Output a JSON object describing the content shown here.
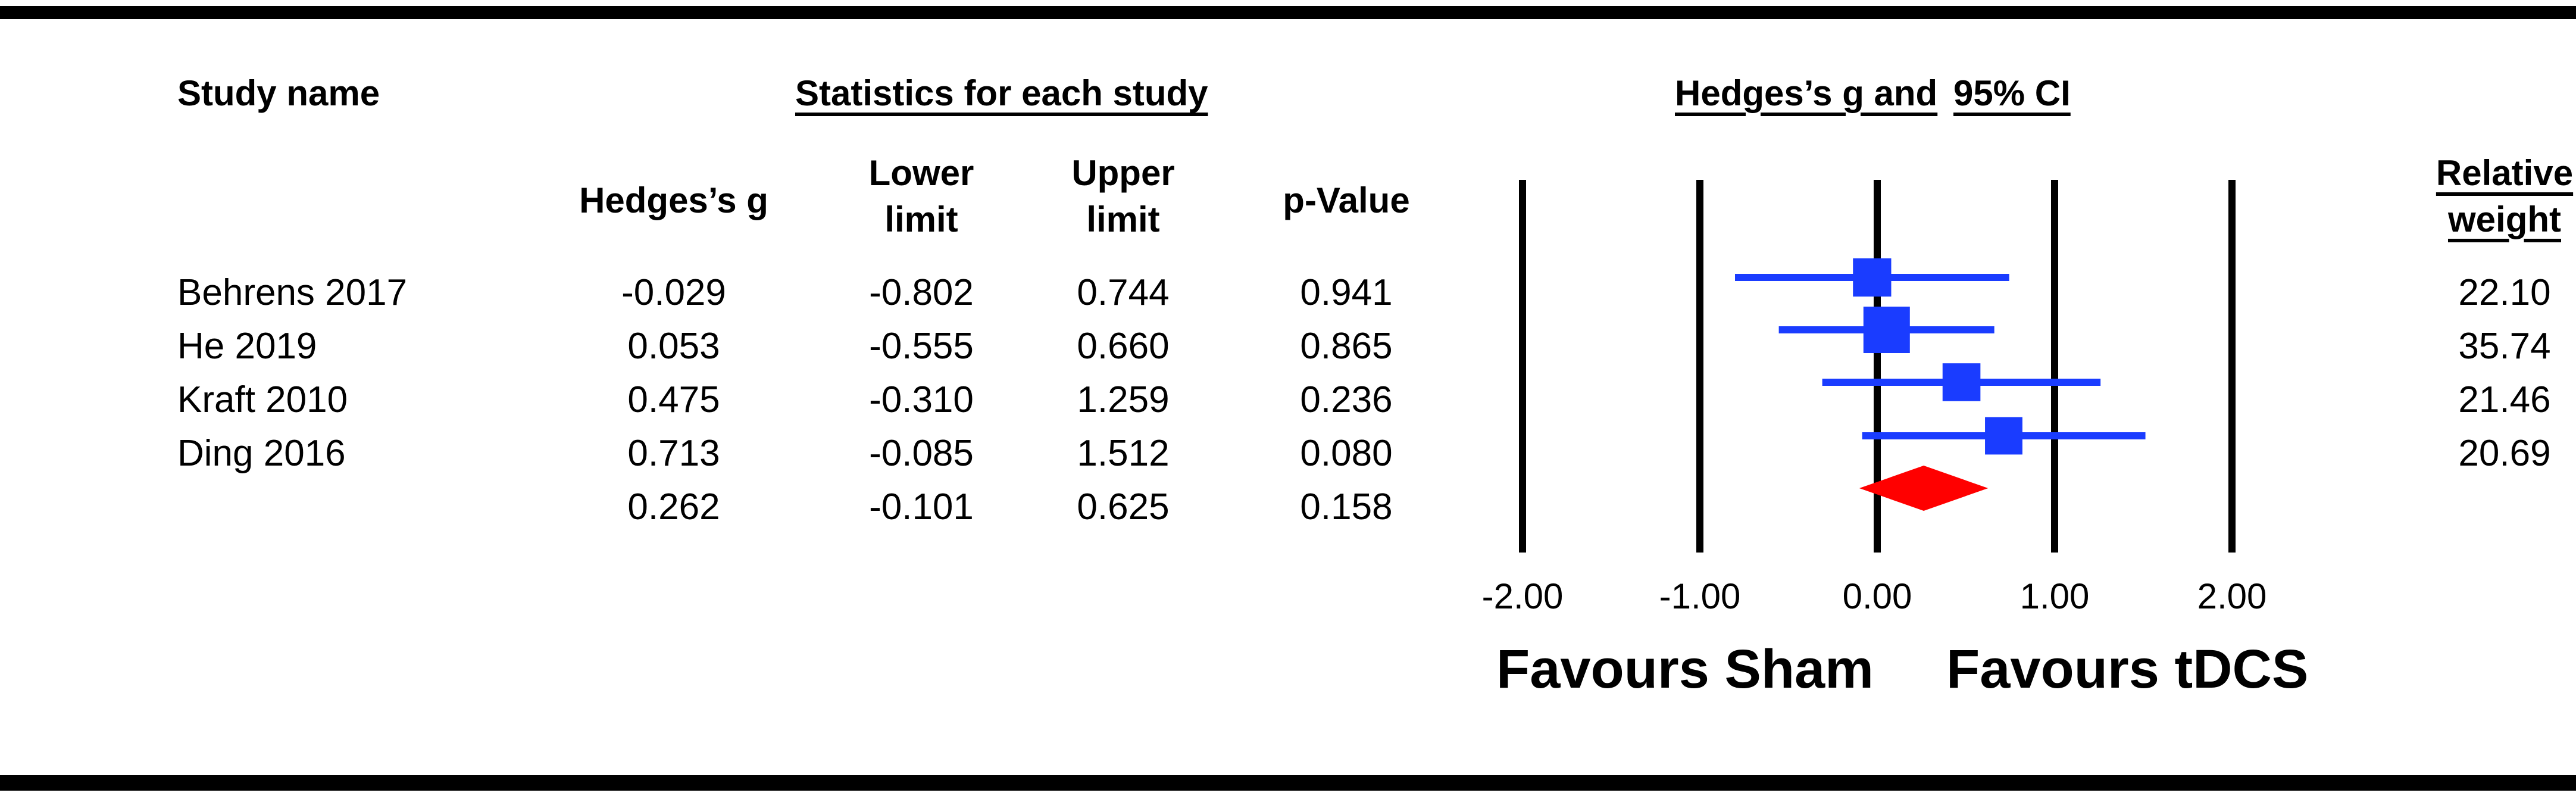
{
  "headers": {
    "study_name": "Study name",
    "stats_group": "Statistics for each study",
    "hedges_g": "Hedges’s g",
    "lower_limit": [
      "Lower",
      "limit"
    ],
    "upper_limit": [
      "Upper",
      "limit"
    ],
    "p_value": "p-Value",
    "plot_title_part1": "Hedges’s g and",
    "plot_title_part2": "95% CI",
    "relative_weight": [
      "Relative",
      "weight"
    ]
  },
  "rows": [
    {
      "study": "Behrens 2017",
      "g": "-0.029",
      "lower": "-0.802",
      "upper": "0.744",
      "p": "0.941",
      "weight": "22.10"
    },
    {
      "study": "He 2019",
      "g": "0.053",
      "lower": "-0.555",
      "upper": "0.660",
      "p": "0.865",
      "weight": "35.74"
    },
    {
      "study": "Kraft 2010",
      "g": "0.475",
      "lower": "-0.310",
      "upper": "1.259",
      "p": "0.236",
      "weight": "21.46"
    },
    {
      "study": "Ding 2016",
      "g": "0.713",
      "lower": "-0.085",
      "upper": "1.512",
      "p": "0.080",
      "weight": "20.69"
    }
  ],
  "summary": {
    "study": "",
    "g": "0.262",
    "lower": "-0.101",
    "upper": "0.625",
    "p": "0.158",
    "weight": ""
  },
  "chart_data": {
    "type": "scatter",
    "subtype": "forest_plot",
    "title": "Hedges’s g and 95% CI",
    "xlim": [
      -2.0,
      2.0
    ],
    "x_ticks": [
      "-2.00",
      "-1.00",
      "0.00",
      "1.00",
      "2.00"
    ],
    "xlabel_left": "Favours Sham",
    "xlabel_right": "Favours tDCS",
    "series": [
      {
        "values": [
          {
            "study": "Behrens 2017",
            "g": -0.029,
            "lower": -0.802,
            "upper": 0.744,
            "weight": 22.1
          },
          {
            "study": "He 2019",
            "g": 0.053,
            "lower": -0.555,
            "upper": 0.66,
            "weight": 35.74
          },
          {
            "study": "Kraft 2010",
            "g": 0.475,
            "lower": -0.31,
            "upper": 1.259,
            "weight": 21.46
          },
          {
            "study": "Ding 2016",
            "g": 0.713,
            "lower": -0.085,
            "upper": 1.512,
            "weight": 20.69
          }
        ]
      }
    ],
    "summary": {
      "g": 0.262,
      "lower": -0.101,
      "upper": 0.625
    },
    "colors": {
      "study": "#1a3cff",
      "summary": "#ff0000",
      "lines": "#000000"
    },
    "grid": false
  }
}
